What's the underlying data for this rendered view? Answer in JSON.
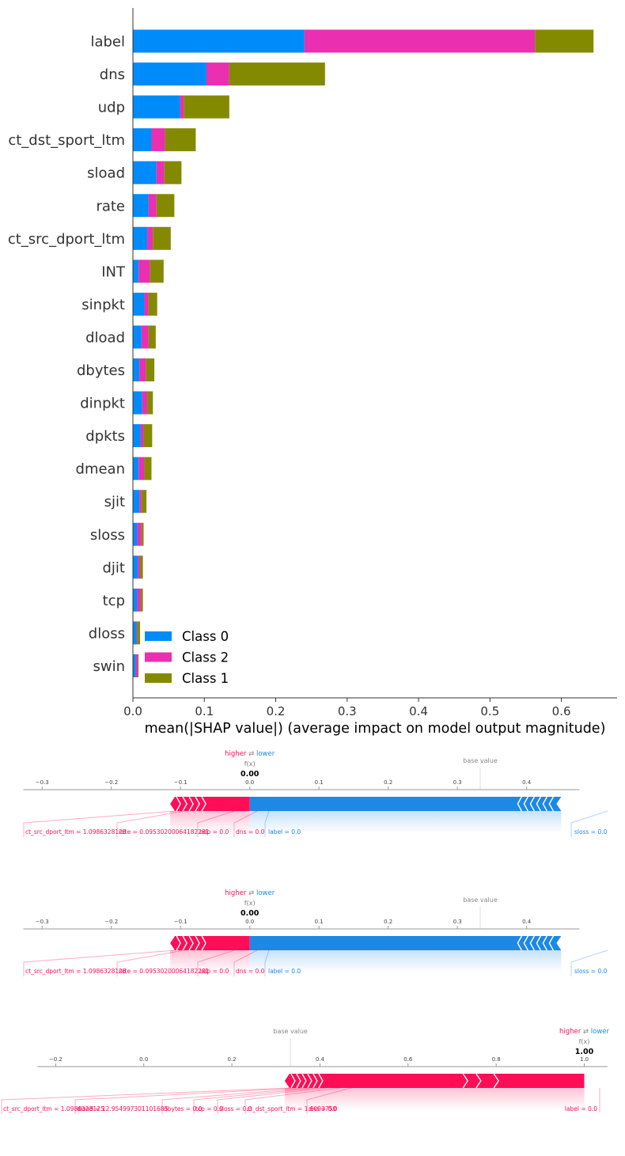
{
  "chart_data": [
    {
      "type": "bar",
      "orientation": "horizontal",
      "stacked": true,
      "xlabel": "mean(|SHAP value|) (average impact on model output magnitude)",
      "xlim": [
        0,
        0.678
      ],
      "xticks": [
        "0.0",
        "0.1",
        "0.2",
        "0.3",
        "0.4",
        "0.5",
        "0.6"
      ],
      "categories": [
        "label",
        "dns",
        "udp",
        "ct_dst_sport_ltm",
        "sload",
        "rate",
        "ct_src_dport_ltm",
        "INT",
        "sinpkt",
        "dload",
        "dbytes",
        "dinpkt",
        "dpkts",
        "dmean",
        "sjit",
        "sloss",
        "djit",
        "tcp",
        "dloss",
        "swin"
      ],
      "series": [
        {
          "name": "Class 0",
          "color": "#008bfb",
          "values": [
            0.24,
            0.103,
            0.066,
            0.026,
            0.033,
            0.022,
            0.02,
            0.008,
            0.016,
            0.012,
            0.009,
            0.013,
            0.011,
            0.008,
            0.009,
            0.006,
            0.007,
            0.006,
            0.005,
            0.004
          ]
        },
        {
          "name": "Class 2",
          "color": "#ea2fb0",
          "values": [
            0.323,
            0.032,
            0.005,
            0.019,
            0.011,
            0.011,
            0.008,
            0.016,
            0.006,
            0.01,
            0.009,
            0.007,
            0.004,
            0.008,
            0.003,
            0.006,
            0.003,
            0.005,
            0.001,
            0.003
          ]
        },
        {
          "name": "Class 1",
          "color": "#848a00",
          "values": [
            0.082,
            0.134,
            0.064,
            0.043,
            0.024,
            0.025,
            0.025,
            0.019,
            0.012,
            0.01,
            0.012,
            0.008,
            0.012,
            0.01,
            0.007,
            0.003,
            0.004,
            0.003,
            0.004,
            0.001
          ]
        }
      ],
      "legend_position": "lower-left"
    },
    {
      "type": "force",
      "text": {
        "higher": "higher",
        "lower": "lower",
        "fx": "f(x)",
        "value": "0.00",
        "base": "base value"
      },
      "xlim": [
        -0.31,
        0.465
      ],
      "xticks": [
        -0.3,
        -0.2,
        -0.1,
        0.0,
        0.1,
        0.2,
        0.3,
        0.4
      ],
      "tick_labels": [
        "−0.3",
        "−0.2",
        "−0.1",
        "0.0",
        "0.1",
        "0.2",
        "0.3",
        "0.4"
      ],
      "fx": 0.0,
      "base_value": 0.333,
      "positive_range": [
        -0.115,
        0.0
      ],
      "negative_range": [
        0.0,
        0.45
      ],
      "positive_labels": [
        "ct_src_dport_ltm = 1.0986328125",
        "rate = 0.09530200064182281",
        "udp = 0.0",
        "dns = 0.0"
      ],
      "negative_labels": [
        "label = 0.0",
        "sloss = 0.0"
      ]
    },
    {
      "type": "force",
      "text": {
        "higher": "higher",
        "lower": "lower",
        "fx": "f(x)",
        "value": "0.00",
        "base": "base value"
      },
      "xlim": [
        -0.31,
        0.465
      ],
      "xticks": [
        -0.3,
        -0.2,
        -0.1,
        0.0,
        0.1,
        0.2,
        0.3,
        0.4
      ],
      "tick_labels": [
        "−0.3",
        "−0.2",
        "−0.1",
        "0.0",
        "0.1",
        "0.2",
        "0.3",
        "0.4"
      ],
      "fx": 0.0,
      "base_value": 0.333,
      "positive_range": [
        -0.115,
        0.0
      ],
      "negative_range": [
        0.0,
        0.45
      ],
      "positive_labels": [
        "ct_src_dport_ltm = 1.0986328125",
        "rate = 0.09530200064182281",
        "udp = 0.0",
        "dns = 0.0"
      ],
      "negative_labels": [
        "label = 0.0",
        "sloss = 0.0"
      ]
    },
    {
      "type": "force",
      "text": {
        "higher": "higher",
        "lower": "lower",
        "fx": "f(x)",
        "value": "1.00",
        "base": "base value"
      },
      "xlim": [
        -0.215,
        1.035
      ],
      "xticks": [
        -0.2,
        0.0,
        0.2,
        0.4,
        0.6,
        0.8,
        1.0
      ],
      "tick_labels": [
        "−0.2",
        "0.0",
        "0.2",
        "0.4",
        "0.6",
        "0.8",
        "1.0"
      ],
      "fx": 1.0,
      "base_value": 0.333,
      "positive_range": [
        0.32,
        1.0
      ],
      "negative_range": [],
      "positive_labels": [
        "ct_src_dport_ltm = 1.0986328125",
        "dload = 12.954997301101685",
        "dbytes = 0.0",
        "tcp = 0.0",
        "sloss = 0.0",
        "ct_dst_sport_ltm = 1.6093750",
        "dns = 0.0",
        "label = 0.0"
      ],
      "negative_labels": []
    }
  ]
}
